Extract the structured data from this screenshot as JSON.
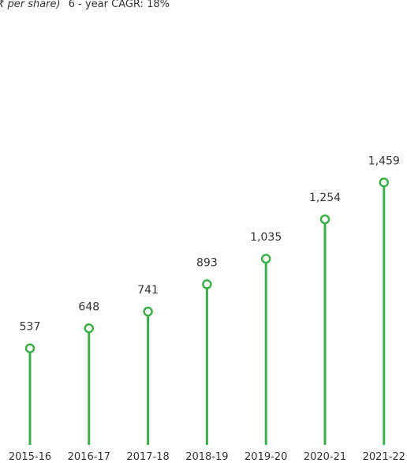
{
  "header": {
    "unit": "(₹ per share)",
    "cagr": "6 - year CAGR: 18%"
  },
  "colors": {
    "stem": "#3dae49",
    "marker_fill": "#ffffff",
    "text": "#333333"
  },
  "chart_data": {
    "type": "lollipop",
    "categories": [
      "2015-16",
      "2016-17",
      "2017-18",
      "2018-19",
      "2019-20",
      "2020-21",
      "2021-22"
    ],
    "values": [
      537,
      648,
      741,
      893,
      1035,
      1254,
      1459
    ],
    "value_labels": [
      "537",
      "648",
      "741",
      "893",
      "1,035",
      "1,254",
      "1,459"
    ],
    "ylim": [
      0,
      1500
    ],
    "grid": false,
    "legend": "none"
  }
}
